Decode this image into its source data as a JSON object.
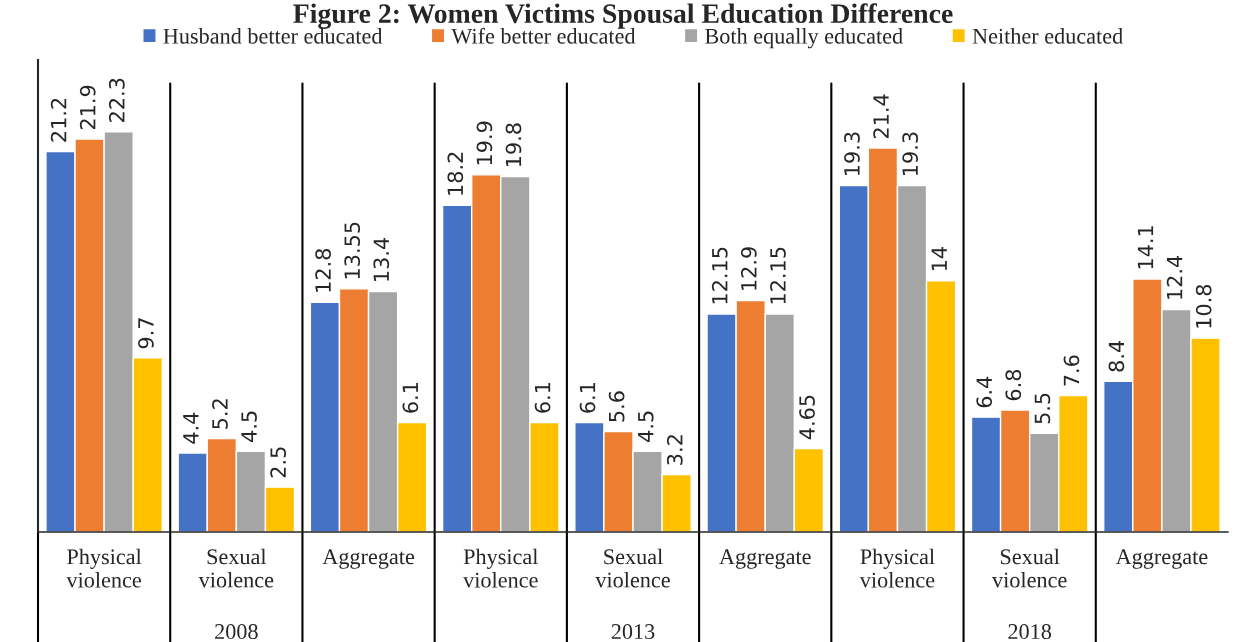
{
  "chart_data": {
    "type": "bar",
    "title": "Figure 2: Women Victims Spousal Education Difference",
    "categories": [
      "Physical\nviolence",
      "Sexual\nviolence",
      "Aggregate",
      "Physical\nviolence",
      "Sexual\nviolence",
      "Aggregate",
      "Physical\nviolence",
      "Sexual\nviolence",
      "Aggregate"
    ],
    "series": [
      {
        "name": "Husband better educated",
        "color": "#4472c4",
        "values": [
          21.2,
          4.4,
          12.8,
          18.2,
          6.1,
          12.15,
          19.3,
          6.4,
          8.4
        ]
      },
      {
        "name": "Wife better educated",
        "color": "#ed7d31",
        "values": [
          21.9,
          5.2,
          13.55,
          19.9,
          5.6,
          12.9,
          21.4,
          6.8,
          14.1
        ]
      },
      {
        "name": "Both equally educated",
        "color": "#a5a5a5",
        "values": [
          22.3,
          4.5,
          13.4,
          19.8,
          4.5,
          12.15,
          19.3,
          5.5,
          12.4
        ]
      },
      {
        "name": "Neither educated",
        "color": "#ffc000",
        "values": [
          9.7,
          2.5,
          6.1,
          6.1,
          3.2,
          4.65,
          14,
          7.6,
          10.8
        ]
      }
    ],
    "annotations": [
      "2008",
      "2013",
      "2018"
    ],
    "ylim": [
      0,
      26.3
    ],
    "tick_labels": "x",
    "data_labels": true,
    "grid": "x",
    "legend": "top"
  }
}
